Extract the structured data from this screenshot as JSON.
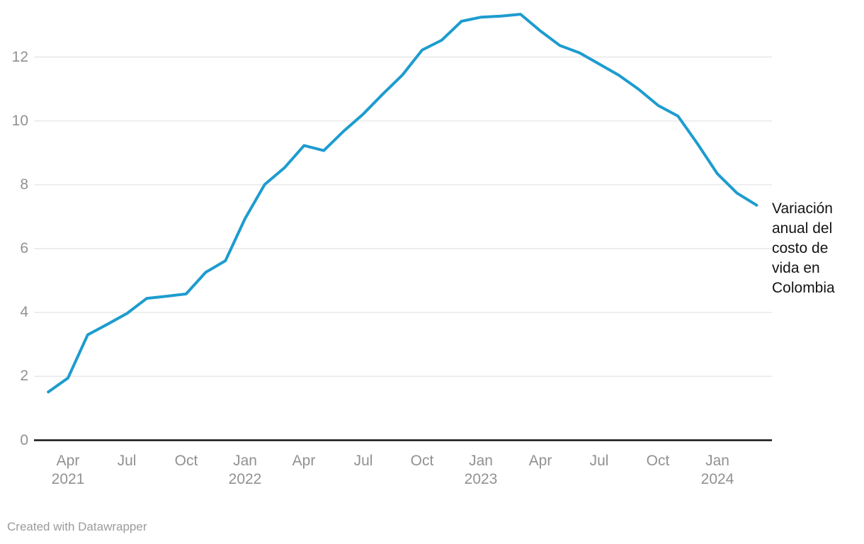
{
  "chart_data": {
    "type": "line",
    "title": "",
    "xlabel": "",
    "ylabel": "",
    "x": [
      "Mar 2021",
      "Apr 2021",
      "May 2021",
      "Jun 2021",
      "Jul 2021",
      "Aug 2021",
      "Sep 2021",
      "Oct 2021",
      "Nov 2021",
      "Dec 2021",
      "Jan 2022",
      "Feb 2022",
      "Mar 2022",
      "Apr 2022",
      "May 2022",
      "Jun 2022",
      "Jul 2022",
      "Aug 2022",
      "Sep 2022",
      "Oct 2022",
      "Nov 2022",
      "Dec 2022",
      "Jan 2023",
      "Feb 2023",
      "Mar 2023",
      "Apr 2023",
      "May 2023",
      "Jun 2023",
      "Jul 2023",
      "Aug 2023",
      "Sep 2023",
      "Oct 2023",
      "Nov 2023",
      "Dec 2023",
      "Jan 2024",
      "Feb 2024",
      "Mar 2024"
    ],
    "series": [
      {
        "name": "Variación anual del costo de vida en Colombia",
        "values": [
          1.51,
          1.95,
          3.3,
          3.63,
          3.97,
          4.44,
          4.51,
          4.58,
          5.26,
          5.62,
          6.94,
          8.01,
          8.53,
          9.23,
          9.07,
          9.67,
          10.21,
          10.84,
          11.44,
          12.22,
          12.53,
          13.12,
          13.25,
          13.28,
          13.34,
          12.82,
          12.36,
          12.13,
          11.78,
          11.43,
          10.99,
          10.48,
          10.15,
          9.28,
          8.35,
          7.74,
          7.36
        ]
      }
    ],
    "ylim": [
      0,
      13.78
    ],
    "yticks": [
      0,
      2,
      4,
      6,
      8,
      10,
      12
    ],
    "xticks": [
      {
        "index": 1,
        "month": "Apr",
        "year": "2021"
      },
      {
        "index": 4,
        "month": "Jul",
        "year": ""
      },
      {
        "index": 7,
        "month": "Oct",
        "year": ""
      },
      {
        "index": 10,
        "month": "Jan",
        "year": "2022"
      },
      {
        "index": 13,
        "month": "Apr",
        "year": ""
      },
      {
        "index": 16,
        "month": "Jul",
        "year": ""
      },
      {
        "index": 19,
        "month": "Oct",
        "year": ""
      },
      {
        "index": 22,
        "month": "Jan",
        "year": "2023"
      },
      {
        "index": 25,
        "month": "Apr",
        "year": ""
      },
      {
        "index": 28,
        "month": "Jul",
        "year": ""
      },
      {
        "index": 31,
        "month": "Oct",
        "year": ""
      },
      {
        "index": 34,
        "month": "Jan",
        "year": "2024"
      }
    ],
    "grid": true,
    "legend_position": "right-of-line-end",
    "colors": {
      "line": "#1d9ccf",
      "grid": "#e7e7e7",
      "axis": "#141414",
      "tick_label": "#919191",
      "annotation": "#141414",
      "footer": "#9b9b9b"
    }
  },
  "annotation": {
    "text": "Variación anual del costo de vida en Colombia"
  },
  "footer": {
    "credit": "Created with Datawrapper"
  }
}
